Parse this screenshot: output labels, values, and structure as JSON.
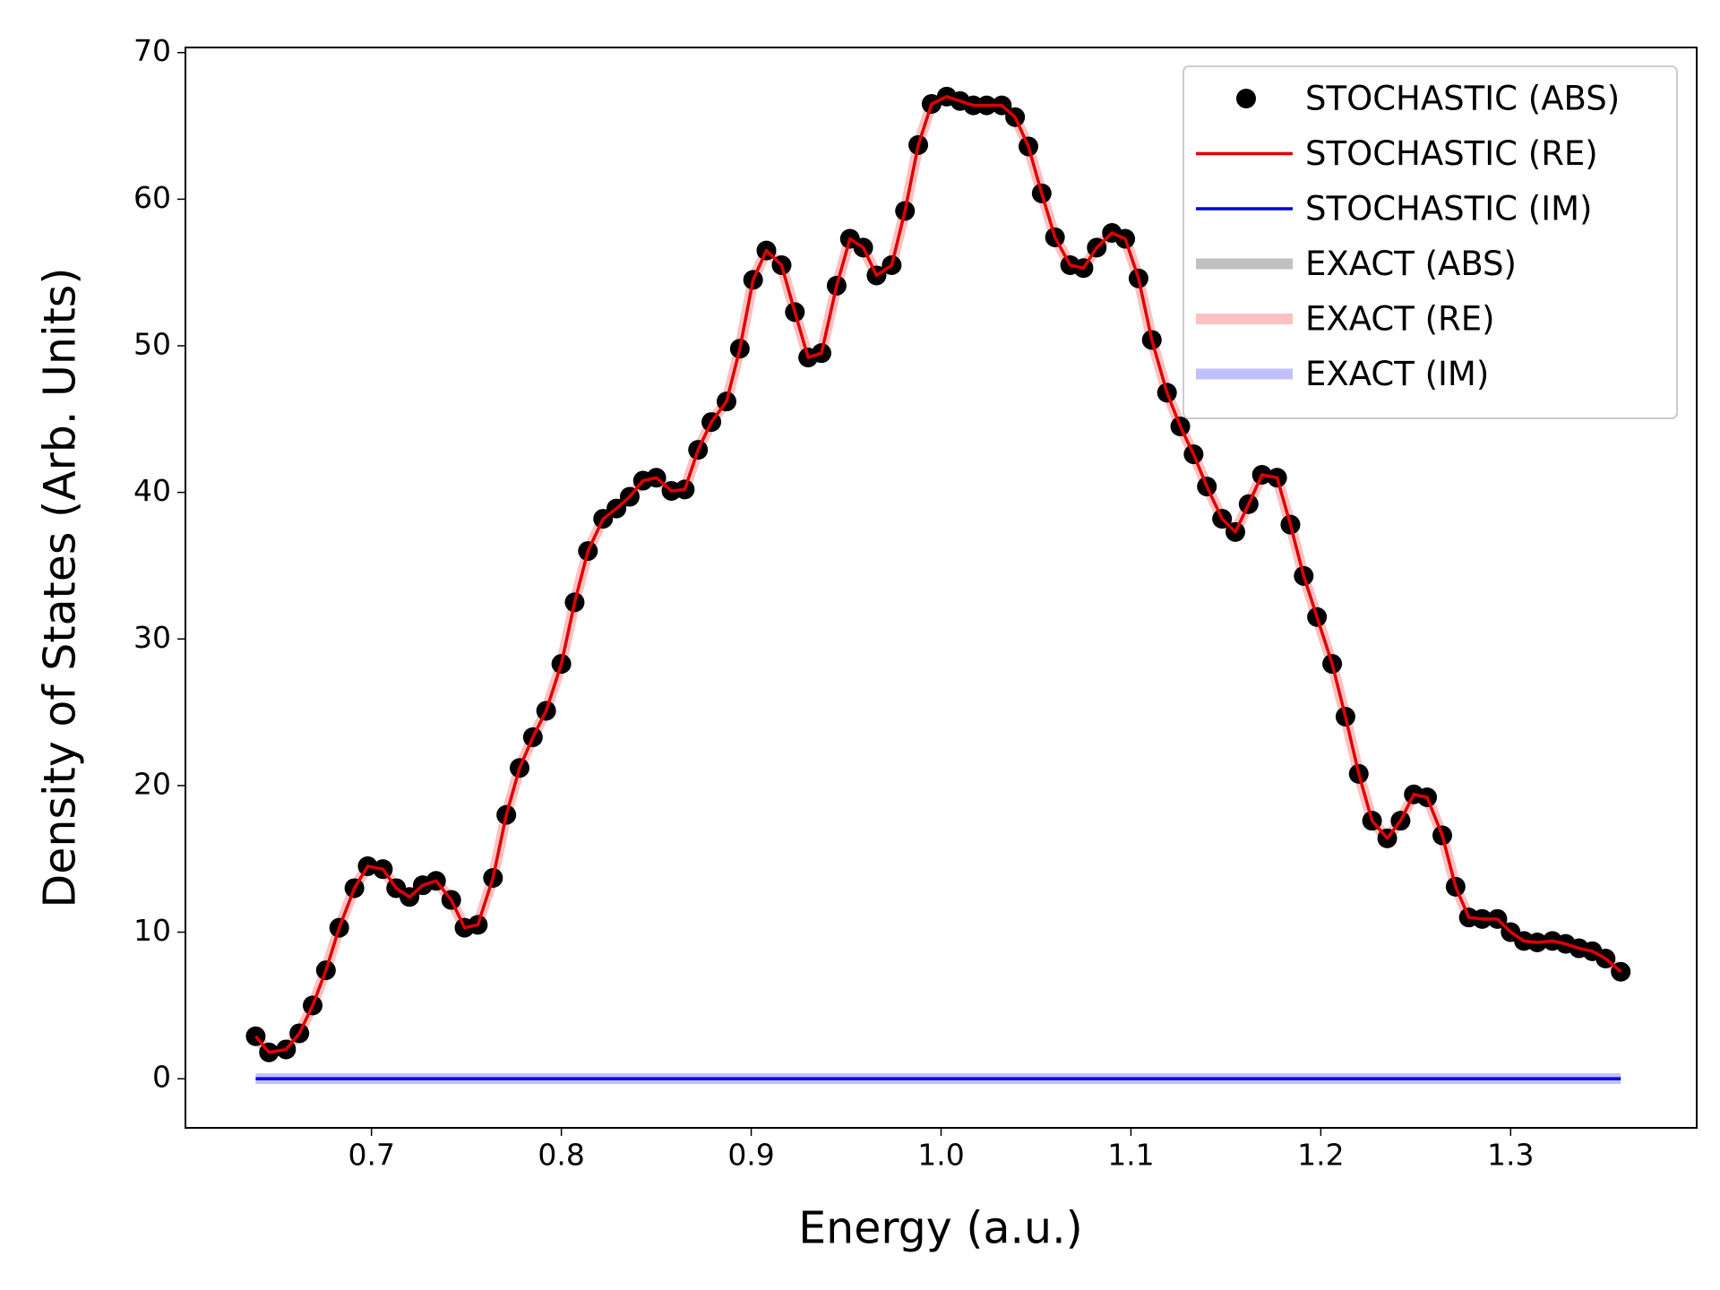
{
  "chart_data": {
    "type": "line",
    "xlabel": "Energy (a.u.)",
    "ylabel": "Density of States (Arb. Units)",
    "x": [
      0.639,
      0.646,
      0.655,
      0.662,
      0.669,
      0.676,
      0.683,
      0.691,
      0.698,
      0.706,
      0.713,
      0.72,
      0.727,
      0.734,
      0.742,
      0.749,
      0.756,
      0.764,
      0.771,
      0.778,
      0.785,
      0.792,
      0.8,
      0.807,
      0.814,
      0.822,
      0.829,
      0.836,
      0.843,
      0.85,
      0.858,
      0.865,
      0.872,
      0.879,
      0.887,
      0.894,
      0.901,
      0.908,
      0.916,
      0.923,
      0.93,
      0.937,
      0.945,
      0.952,
      0.959,
      0.966,
      0.974,
      0.981,
      0.988,
      0.995,
      1.003,
      1.01,
      1.017,
      1.024,
      1.032,
      1.039,
      1.046,
      1.053,
      1.06,
      1.068,
      1.075,
      1.082,
      1.09,
      1.097,
      1.104,
      1.111,
      1.119,
      1.126,
      1.133,
      1.14,
      1.148,
      1.155,
      1.162,
      1.169,
      1.177,
      1.184,
      1.191,
      1.198,
      1.206,
      1.213,
      1.22,
      1.227,
      1.235,
      1.242,
      1.249,
      1.256,
      1.264,
      1.271,
      1.278,
      1.285,
      1.293,
      1.3,
      1.307,
      1.314,
      1.322,
      1.329,
      1.336,
      1.343,
      1.35,
      1.358
    ],
    "series": [
      {
        "name": "STOCHASTIC (ABS)",
        "color": "#000000",
        "linestyle": "marker",
        "values": [
          2.9,
          1.8,
          2.0,
          3.1,
          5.0,
          7.4,
          10.3,
          13.0,
          14.5,
          14.3,
          13.0,
          12.4,
          13.2,
          13.5,
          12.2,
          10.3,
          10.5,
          13.7,
          18.0,
          21.2,
          23.3,
          25.1,
          28.3,
          32.5,
          36.0,
          38.2,
          38.9,
          39.7,
          40.8,
          41.0,
          40.1,
          40.2,
          42.9,
          44.8,
          46.2,
          49.8,
          54.5,
          56.5,
          55.5,
          52.3,
          49.2,
          49.5,
          54.1,
          57.3,
          56.7,
          54.8,
          55.5,
          59.2,
          63.7,
          66.5,
          67.0,
          66.7,
          66.4,
          66.4,
          66.4,
          65.6,
          63.6,
          60.4,
          57.4,
          55.5,
          55.3,
          56.7,
          57.7,
          57.3,
          54.6,
          50.4,
          46.8,
          44.5,
          42.6,
          40.4,
          38.2,
          37.3,
          39.2,
          41.2,
          41.0,
          37.8,
          34.3,
          31.5,
          28.3,
          24.7,
          20.8,
          17.6,
          16.4,
          17.6,
          19.4,
          19.2,
          16.6,
          13.1,
          11.0,
          10.9,
          10.9,
          10.0,
          9.4,
          9.3,
          9.4,
          9.2,
          8.9,
          8.7,
          8.2,
          7.3
        ]
      },
      {
        "name": "STOCHASTIC (RE)",
        "color": "#e00000",
        "linestyle": "thin",
        "values": [
          2.9,
          1.8,
          2.0,
          3.1,
          5.0,
          7.4,
          10.3,
          13.0,
          14.5,
          14.3,
          13.0,
          12.4,
          13.2,
          13.5,
          12.2,
          10.3,
          10.5,
          13.7,
          18.0,
          21.2,
          23.3,
          25.1,
          28.3,
          32.5,
          36.0,
          38.2,
          38.9,
          39.7,
          40.8,
          41.0,
          40.1,
          40.2,
          42.9,
          44.8,
          46.2,
          49.8,
          54.5,
          56.5,
          55.5,
          52.3,
          49.2,
          49.5,
          54.1,
          57.3,
          56.7,
          54.8,
          55.5,
          59.2,
          63.7,
          66.5,
          67.0,
          66.7,
          66.4,
          66.4,
          66.4,
          65.6,
          63.6,
          60.4,
          57.4,
          55.5,
          55.3,
          56.7,
          57.7,
          57.3,
          54.6,
          50.4,
          46.8,
          44.5,
          42.6,
          40.4,
          38.2,
          37.3,
          39.2,
          41.2,
          41.0,
          37.8,
          34.3,
          31.5,
          28.3,
          24.7,
          20.8,
          17.6,
          16.4,
          17.6,
          19.4,
          19.2,
          16.6,
          13.1,
          11.0,
          10.9,
          10.9,
          10.0,
          9.4,
          9.3,
          9.4,
          9.2,
          8.9,
          8.7,
          8.2,
          7.3
        ]
      },
      {
        "name": "STOCHASTIC (IM)",
        "color": "#0000e0",
        "linestyle": "thin",
        "values": [
          0,
          0,
          0,
          0,
          0,
          0,
          0,
          0,
          0,
          0,
          0,
          0,
          0,
          0,
          0,
          0,
          0,
          0,
          0,
          0,
          0,
          0,
          0,
          0,
          0,
          0,
          0,
          0,
          0,
          0,
          0,
          0,
          0,
          0,
          0,
          0,
          0,
          0,
          0,
          0,
          0,
          0,
          0,
          0,
          0,
          0,
          0,
          0,
          0,
          0,
          0,
          0,
          0,
          0,
          0,
          0,
          0,
          0,
          0,
          0,
          0,
          0,
          0,
          0,
          0,
          0,
          0,
          0,
          0,
          0,
          0,
          0,
          0,
          0,
          0,
          0,
          0,
          0,
          0,
          0,
          0,
          0,
          0,
          0,
          0,
          0,
          0,
          0,
          0,
          0,
          0,
          0,
          0,
          0,
          0,
          0,
          0,
          0,
          0,
          0
        ]
      },
      {
        "name": "EXACT (ABS)",
        "color": "#c0c0c0",
        "linestyle": "thick",
        "values": [
          2.9,
          1.8,
          2.0,
          3.1,
          5.0,
          7.4,
          10.3,
          13.0,
          14.5,
          14.3,
          13.0,
          12.4,
          13.2,
          13.5,
          12.2,
          10.3,
          10.5,
          13.7,
          18.0,
          21.2,
          23.3,
          25.1,
          28.3,
          32.5,
          36.0,
          38.2,
          38.9,
          39.7,
          40.8,
          41.0,
          40.1,
          40.2,
          42.9,
          44.8,
          46.2,
          49.8,
          54.5,
          56.5,
          55.5,
          52.3,
          49.2,
          49.5,
          54.1,
          57.3,
          56.7,
          54.8,
          55.5,
          59.2,
          63.7,
          66.5,
          67.0,
          66.7,
          66.4,
          66.4,
          66.4,
          65.6,
          63.6,
          60.4,
          57.4,
          55.5,
          55.3,
          56.7,
          57.7,
          57.3,
          54.6,
          50.4,
          46.8,
          44.5,
          42.6,
          40.4,
          38.2,
          37.3,
          39.2,
          41.2,
          41.0,
          37.8,
          34.3,
          31.5,
          28.3,
          24.7,
          20.8,
          17.6,
          16.4,
          17.6,
          19.4,
          19.2,
          16.6,
          13.1,
          11.0,
          10.9,
          10.9,
          10.0,
          9.4,
          9.3,
          9.4,
          9.2,
          8.9,
          8.7,
          8.2,
          7.3
        ]
      },
      {
        "name": "EXACT (RE)",
        "color": "#ffc0c0",
        "linestyle": "thick",
        "values": [
          2.9,
          1.8,
          2.0,
          3.1,
          5.0,
          7.4,
          10.3,
          13.0,
          14.5,
          14.3,
          13.0,
          12.4,
          13.2,
          13.5,
          12.2,
          10.3,
          10.5,
          13.7,
          18.0,
          21.2,
          23.3,
          25.1,
          28.3,
          32.5,
          36.0,
          38.2,
          38.9,
          39.7,
          40.8,
          41.0,
          40.1,
          40.2,
          42.9,
          44.8,
          46.2,
          49.8,
          54.5,
          56.5,
          55.5,
          52.3,
          49.2,
          49.5,
          54.1,
          57.3,
          56.7,
          54.8,
          55.5,
          59.2,
          63.7,
          66.5,
          67.0,
          66.7,
          66.4,
          66.4,
          66.4,
          65.6,
          63.6,
          60.4,
          57.4,
          55.5,
          55.3,
          56.7,
          57.7,
          57.3,
          54.6,
          50.4,
          46.8,
          44.5,
          42.6,
          40.4,
          38.2,
          37.3,
          39.2,
          41.2,
          41.0,
          37.8,
          34.3,
          31.5,
          28.3,
          24.7,
          20.8,
          17.6,
          16.4,
          17.6,
          19.4,
          19.2,
          16.6,
          13.1,
          11.0,
          10.9,
          10.9,
          10.0,
          9.4,
          9.3,
          9.4,
          9.2,
          8.9,
          8.7,
          8.2,
          7.3
        ]
      },
      {
        "name": "EXACT (IM)",
        "color": "#c0c0ff",
        "linestyle": "thick",
        "values": [
          0,
          0,
          0,
          0,
          0,
          0,
          0,
          0,
          0,
          0,
          0,
          0,
          0,
          0,
          0,
          0,
          0,
          0,
          0,
          0,
          0,
          0,
          0,
          0,
          0,
          0,
          0,
          0,
          0,
          0,
          0,
          0,
          0,
          0,
          0,
          0,
          0,
          0,
          0,
          0,
          0,
          0,
          0,
          0,
          0,
          0,
          0,
          0,
          0,
          0,
          0,
          0,
          0,
          0,
          0,
          0,
          0,
          0,
          0,
          0,
          0,
          0,
          0,
          0,
          0,
          0,
          0,
          0,
          0,
          0,
          0,
          0,
          0,
          0,
          0,
          0,
          0,
          0,
          0,
          0,
          0,
          0,
          0,
          0,
          0,
          0,
          0,
          0,
          0,
          0,
          0,
          0,
          0,
          0,
          0,
          0,
          0,
          0,
          0,
          0
        ]
      }
    ],
    "xlim": [
      0.602,
      1.398
    ],
    "xticks": [
      0.7,
      0.8,
      0.9,
      {
        "value": 1,
        "label": "1.0"
      },
      1.1,
      1.2,
      1.3
    ],
    "ylim": [
      -3.35,
      70.35
    ],
    "yticks": [
      0,
      10,
      20,
      30,
      40,
      50,
      60,
      70
    ],
    "legend": "upper right",
    "grid": false
  }
}
